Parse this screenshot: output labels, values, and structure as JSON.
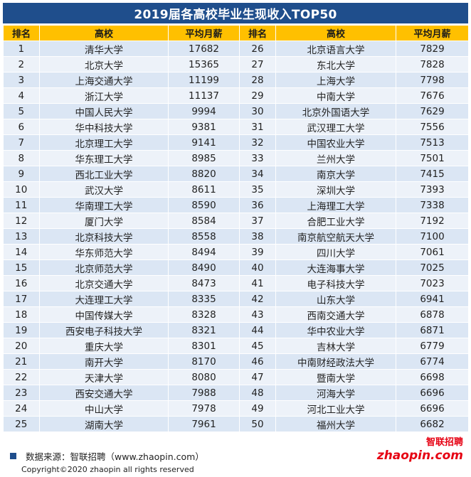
{
  "title": "2019届各高校毕业生现收入TOP50",
  "headers": {
    "rank": "排名",
    "school": "高校",
    "salary": "平均月薪",
    "rank2": "排名",
    "school2": "高校",
    "salary2": "平均月薪"
  },
  "rows": [
    {
      "rank": "1",
      "school": "清华大学",
      "salary": "17682",
      "rank2": "26",
      "school2": "北京语言大学",
      "salary2": "7829"
    },
    {
      "rank": "2",
      "school": "北京大学",
      "salary": "15365",
      "rank2": "27",
      "school2": "东北大学",
      "salary2": "7828"
    },
    {
      "rank": "3",
      "school": "上海交通大学",
      "salary": "11199",
      "rank2": "28",
      "school2": "上海大学",
      "salary2": "7798"
    },
    {
      "rank": "4",
      "school": "浙江大学",
      "salary": "11137",
      "rank2": "29",
      "school2": "中南大学",
      "salary2": "7676"
    },
    {
      "rank": "5",
      "school": "中国人民大学",
      "salary": "9994",
      "rank2": "30",
      "school2": "北京外国语大学",
      "salary2": "7629"
    },
    {
      "rank": "6",
      "school": "华中科技大学",
      "salary": "9381",
      "rank2": "31",
      "school2": "武汉理工大学",
      "salary2": "7556"
    },
    {
      "rank": "7",
      "school": "北京理工大学",
      "salary": "9141",
      "rank2": "32",
      "school2": "中国农业大学",
      "salary2": "7513"
    },
    {
      "rank": "8",
      "school": "华东理工大学",
      "salary": "8985",
      "rank2": "33",
      "school2": "兰州大学",
      "salary2": "7501"
    },
    {
      "rank": "9",
      "school": "西北工业大学",
      "salary": "8820",
      "rank2": "34",
      "school2": "南京大学",
      "salary2": "7415"
    },
    {
      "rank": "10",
      "school": "武汉大学",
      "salary": "8611",
      "rank2": "35",
      "school2": "深圳大学",
      "salary2": "7393"
    },
    {
      "rank": "11",
      "school": "华南理工大学",
      "salary": "8590",
      "rank2": "36",
      "school2": "上海理工大学",
      "salary2": "7338"
    },
    {
      "rank": "12",
      "school": "厦门大学",
      "salary": "8584",
      "rank2": "37",
      "school2": "合肥工业大学",
      "salary2": "7192"
    },
    {
      "rank": "13",
      "school": "北京科技大学",
      "salary": "8558",
      "rank2": "38",
      "school2": "南京航空航天大学",
      "salary2": "7100"
    },
    {
      "rank": "14",
      "school": "华东师范大学",
      "salary": "8494",
      "rank2": "39",
      "school2": "四川大学",
      "salary2": "7061"
    },
    {
      "rank": "15",
      "school": "北京师范大学",
      "salary": "8490",
      "rank2": "40",
      "school2": "大连海事大学",
      "salary2": "7025"
    },
    {
      "rank": "16",
      "school": "北京交通大学",
      "salary": "8473",
      "rank2": "41",
      "school2": "电子科技大学",
      "salary2": "7023"
    },
    {
      "rank": "17",
      "school": "大连理工大学",
      "salary": "8335",
      "rank2": "42",
      "school2": "山东大学",
      "salary2": "6941"
    },
    {
      "rank": "18",
      "school": "中国传媒大学",
      "salary": "8328",
      "rank2": "43",
      "school2": "西南交通大学",
      "salary2": "6878"
    },
    {
      "rank": "19",
      "school": "西安电子科技大学",
      "salary": "8321",
      "rank2": "44",
      "school2": "华中农业大学",
      "salary2": "6871"
    },
    {
      "rank": "20",
      "school": "重庆大学",
      "salary": "8301",
      "rank2": "45",
      "school2": "吉林大学",
      "salary2": "6779"
    },
    {
      "rank": "21",
      "school": "南开大学",
      "salary": "8170",
      "rank2": "46",
      "school2": "中南财经政法大学",
      "salary2": "6774"
    },
    {
      "rank": "22",
      "school": "天津大学",
      "salary": "8080",
      "rank2": "47",
      "school2": "暨南大学",
      "salary2": "6698"
    },
    {
      "rank": "23",
      "school": "西安交通大学",
      "salary": "7988",
      "rank2": "48",
      "school2": "河海大学",
      "salary2": "6696"
    },
    {
      "rank": "24",
      "school": "中山大学",
      "salary": "7978",
      "rank2": "49",
      "school2": "河北工业大学",
      "salary2": "6696"
    },
    {
      "rank": "25",
      "school": "湖南大学",
      "salary": "7961",
      "rank2": "50",
      "school2": "福州大学",
      "salary2": "6682"
    }
  ],
  "source": "数据来源：智联招聘（www.zhaopin.com）",
  "copyright": "Copyright©2020 zhaopin all rights reserved",
  "logo": {
    "cn": "智联招聘",
    "en": "zhaopin.com"
  },
  "colors": {
    "title_bg": "#1f4e8c",
    "header_bg": "#ffc000",
    "row_odd": "#dbe6f4",
    "row_even": "#edf2f9",
    "logo_red": "#e60012"
  }
}
